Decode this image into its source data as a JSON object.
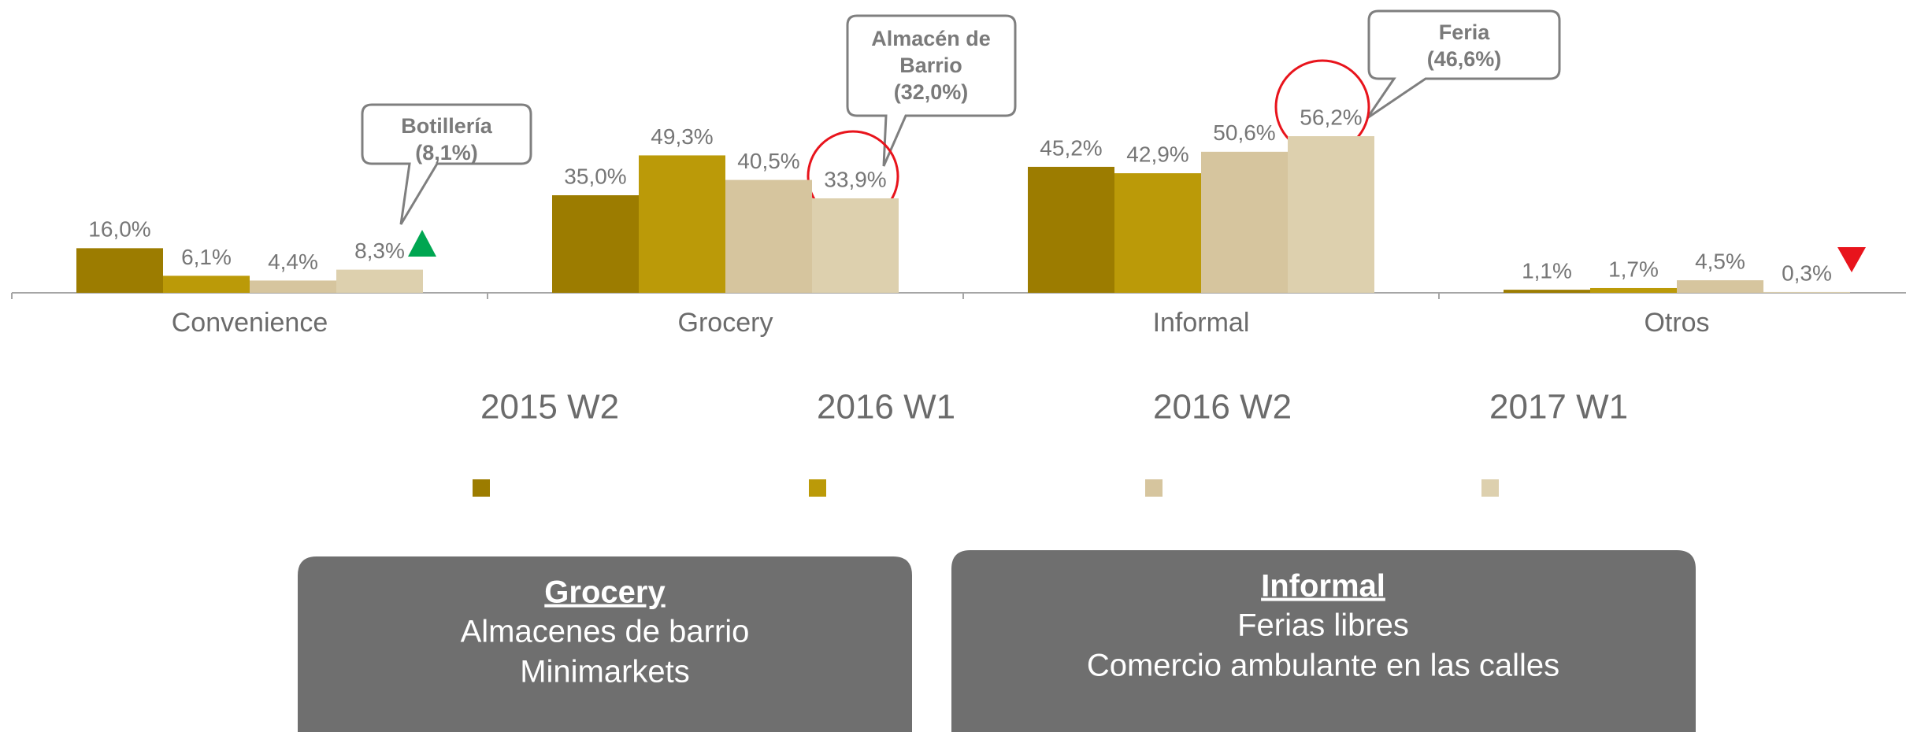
{
  "chart_data": {
    "type": "bar",
    "categories": [
      "Convenience",
      "Grocery",
      "Informal",
      "Otros"
    ],
    "series": [
      {
        "name": "2015 W2",
        "color": "#9c7c00",
        "values": [
          16.0,
          35.0,
          45.2,
          1.1
        ],
        "value_labels": [
          "16,0%",
          "35,0%",
          "45,2%",
          "1,1%"
        ]
      },
      {
        "name": "2016 W1",
        "color": "#bb9a08",
        "values": [
          6.1,
          49.3,
          42.9,
          1.7
        ],
        "value_labels": [
          "6,1%",
          "49,3%",
          "42,9%",
          "1,7%"
        ]
      },
      {
        "name": "2016 W2",
        "color": "#d6c59e",
        "values": [
          4.4,
          40.5,
          50.6,
          4.5
        ],
        "value_labels": [
          "4,4%",
          "40,5%",
          "50,6%",
          "4,5%"
        ]
      },
      {
        "name": "2017 W1",
        "color": "#ddd0ae",
        "values": [
          8.3,
          33.9,
          56.2,
          0.3
        ],
        "value_labels": [
          "8,3%",
          "33,9%",
          "56,2%",
          "0,3%"
        ]
      }
    ],
    "annotations": [
      {
        "lines": [
          "Botillería",
          "(8,1%)"
        ]
      },
      {
        "lines": [
          "Almacén de",
          "Barrio",
          "(32,0%)"
        ]
      },
      {
        "lines": [
          "Feria",
          "(46,6%)"
        ]
      }
    ]
  },
  "boxes": [
    {
      "title": "Grocery",
      "lines": [
        "Almacenes de barrio",
        "Minimarkets"
      ]
    },
    {
      "title": "Informal",
      "lines": [
        "Ferias libres",
        "Comercio ambulante en las calles"
      ]
    }
  ]
}
